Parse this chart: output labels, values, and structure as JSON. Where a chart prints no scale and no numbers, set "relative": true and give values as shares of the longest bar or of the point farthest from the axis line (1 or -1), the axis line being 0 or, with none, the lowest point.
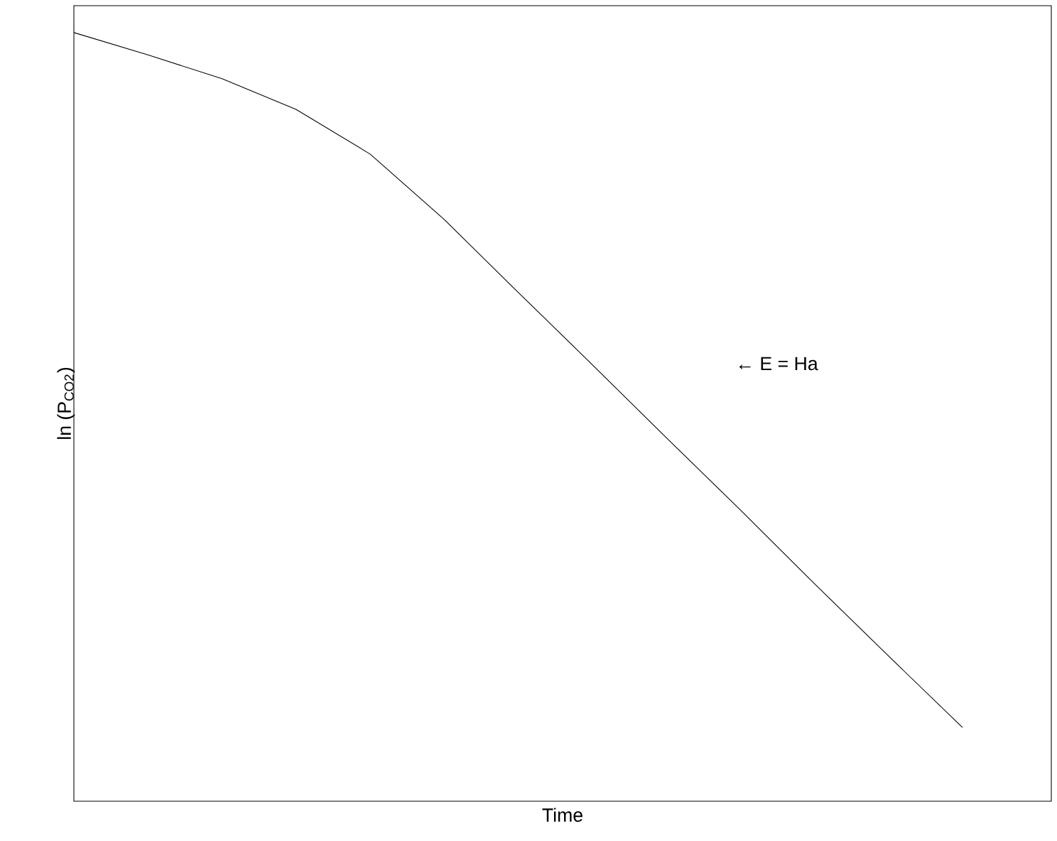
{
  "chart_data": {
    "type": "line",
    "relative": true,
    "xlabel": "Time",
    "ylabel": "ln (P$_{CO2}$)",
    "categories": [
      null,
      null,
      null,
      null,
      null,
      null,
      null,
      null,
      null,
      null,
      null,
      null,
      null
    ],
    "values": [
      1.0,
      0.971,
      0.94,
      0.9,
      0.842,
      0.757,
      0.662,
      0.568,
      0.473,
      0.379,
      0.283,
      0.189,
      0.096
    ],
    "color": "#000000",
    "annotations": [
      "← E = Ha"
    ]
  }
}
